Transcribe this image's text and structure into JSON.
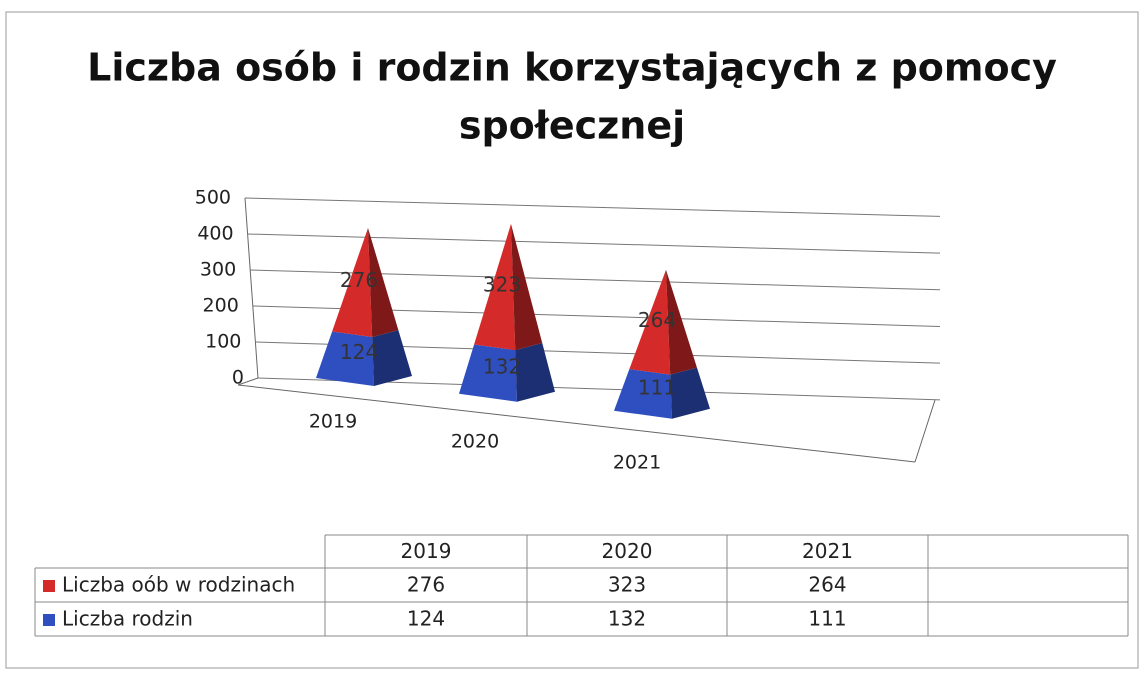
{
  "chart_data": {
    "type": "pyramid3d",
    "title": "Liczba osób i rodzin korzystających z pomocy",
    "title_line2": "społecznej",
    "categories": [
      "2019",
      "2020",
      "2021"
    ],
    "series": [
      {
        "name": "Liczba rodzin",
        "color": "#2f4fc0",
        "values": [
          124,
          132,
          111
        ]
      },
      {
        "name": "Liczba oób w rodzinach",
        "color": "#d42a2a",
        "values": [
          276,
          323,
          264
        ]
      }
    ],
    "ylim": [
      0,
      500
    ],
    "yticks": [
      0,
      100,
      200,
      300,
      400,
      500
    ],
    "grid": true
  }
}
